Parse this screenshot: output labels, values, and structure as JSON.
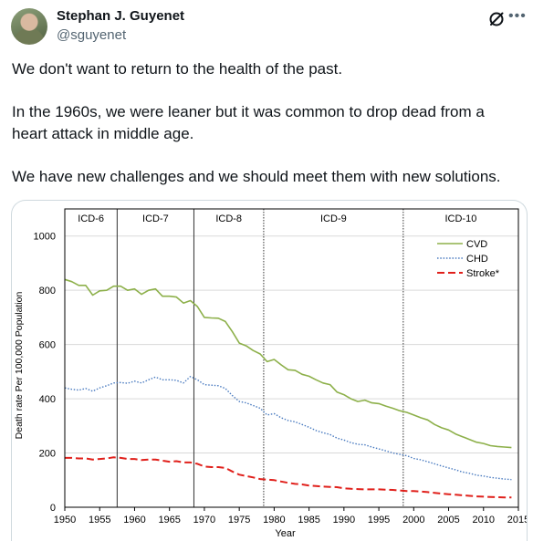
{
  "author": {
    "name": "Stephan J. Guyenet",
    "handle": "@sguyenet"
  },
  "icons": {
    "avatar": "profile-photo",
    "grok": "grok-slash-circle-icon",
    "more": "ellipsis-icon"
  },
  "tweet": {
    "paragraphs": [
      "We don't want to return to the health of the past.",
      "In the 1960s, we were leaner but it was common to drop dead from a heart attack in middle age.",
      "We have new challenges and we should meet them with new solutions."
    ]
  },
  "chart_data": {
    "type": "line",
    "xlabel": "Year",
    "ylabel": "Death rate Per 100,000 Population",
    "xlim": [
      1950,
      2015
    ],
    "ylim": [
      0,
      1100
    ],
    "x_ticks": [
      1950,
      1955,
      1960,
      1965,
      1970,
      1975,
      1980,
      1985,
      1990,
      1995,
      2000,
      2005,
      2010,
      2015
    ],
    "y_ticks": [
      0,
      200,
      400,
      600,
      800,
      1000
    ],
    "legend_position": "top-right",
    "icd_periods": [
      {
        "label": "ICD-6",
        "start": 1950,
        "end": 1957.5,
        "divider_style": "solid"
      },
      {
        "label": "ICD-7",
        "start": 1957.5,
        "end": 1968.5,
        "divider_style": "solid"
      },
      {
        "label": "ICD-8",
        "start": 1968.5,
        "end": 1978.5,
        "divider_style": "dotted"
      },
      {
        "label": "ICD-9",
        "start": 1978.5,
        "end": 1998.5,
        "divider_style": "dotted"
      },
      {
        "label": "ICD-10",
        "start": 1998.5,
        "end": 2015,
        "divider_style": "none"
      }
    ],
    "series": [
      {
        "name": "CVD",
        "color": "#8db04a",
        "style": "solid",
        "x": [
          1950,
          1951,
          1952,
          1953,
          1954,
          1955,
          1956,
          1957,
          1958,
          1959,
          1960,
          1961,
          1962,
          1963,
          1964,
          1965,
          1966,
          1967,
          1968,
          1969,
          1970,
          1971,
          1972,
          1973,
          1974,
          1975,
          1976,
          1977,
          1978,
          1979,
          1980,
          1981,
          1982,
          1983,
          1984,
          1985,
          1986,
          1987,
          1988,
          1989,
          1990,
          1991,
          1992,
          1993,
          1994,
          1995,
          1996,
          1997,
          1998,
          1999,
          2000,
          2001,
          2002,
          2003,
          2004,
          2005,
          2006,
          2007,
          2008,
          2009,
          2010,
          2011,
          2012,
          2013,
          2014
        ],
        "y": [
          840,
          832,
          818,
          818,
          782,
          798,
          800,
          815,
          815,
          800,
          805,
          785,
          800,
          805,
          778,
          778,
          775,
          753,
          762,
          740,
          700,
          698,
          697,
          685,
          648,
          605,
          595,
          578,
          565,
          537,
          545,
          525,
          507,
          505,
          490,
          483,
          470,
          458,
          452,
          425,
          415,
          400,
          390,
          395,
          385,
          382,
          373,
          365,
          356,
          350,
          340,
          330,
          322,
          305,
          293,
          285,
          270,
          260,
          250,
          240,
          235,
          227,
          224,
          222,
          220
        ]
      },
      {
        "name": "CHD",
        "color": "#4a7bc0",
        "style": "dotted",
        "x": [
          1950,
          1951,
          1952,
          1953,
          1954,
          1955,
          1956,
          1957,
          1958,
          1959,
          1960,
          1961,
          1962,
          1963,
          1964,
          1965,
          1966,
          1967,
          1968,
          1969,
          1970,
          1971,
          1972,
          1973,
          1974,
          1975,
          1976,
          1977,
          1978,
          1979,
          1980,
          1981,
          1982,
          1983,
          1984,
          1985,
          1986,
          1987,
          1988,
          1989,
          1990,
          1991,
          1992,
          1993,
          1994,
          1995,
          1996,
          1997,
          1998,
          1999,
          2000,
          2001,
          2002,
          2003,
          2004,
          2005,
          2006,
          2007,
          2008,
          2009,
          2010,
          2011,
          2012,
          2013,
          2014
        ],
        "y": [
          440,
          435,
          432,
          438,
          428,
          440,
          448,
          458,
          460,
          457,
          465,
          458,
          470,
          480,
          470,
          470,
          468,
          458,
          482,
          470,
          452,
          450,
          448,
          438,
          412,
          390,
          385,
          375,
          365,
          340,
          345,
          330,
          320,
          315,
          305,
          295,
          283,
          275,
          268,
          255,
          248,
          238,
          232,
          230,
          222,
          215,
          208,
          200,
          195,
          190,
          180,
          175,
          168,
          160,
          152,
          145,
          138,
          130,
          125,
          118,
          115,
          110,
          107,
          104,
          102
        ]
      },
      {
        "name": "Stroke*",
        "color": "#e0201b",
        "style": "dashed",
        "x": [
          1950,
          1951,
          1952,
          1953,
          1954,
          1955,
          1956,
          1957,
          1958,
          1959,
          1960,
          1961,
          1962,
          1963,
          1964,
          1965,
          1966,
          1967,
          1968,
          1969,
          1970,
          1971,
          1972,
          1973,
          1974,
          1975,
          1976,
          1977,
          1978,
          1979,
          1980,
          1981,
          1982,
          1983,
          1984,
          1985,
          1986,
          1987,
          1988,
          1989,
          1990,
          1991,
          1992,
          1993,
          1994,
          1995,
          1996,
          1997,
          1998,
          1999,
          2000,
          2001,
          2002,
          2003,
          2004,
          2005,
          2006,
          2007,
          2008,
          2009,
          2010,
          2011,
          2012,
          2013,
          2014
        ],
        "y": [
          182,
          182,
          180,
          180,
          176,
          178,
          180,
          184,
          182,
          178,
          178,
          174,
          176,
          176,
          172,
          168,
          170,
          165,
          165,
          160,
          150,
          148,
          148,
          145,
          132,
          120,
          115,
          110,
          104,
          102,
          100,
          95,
          90,
          86,
          84,
          80,
          78,
          76,
          75,
          74,
          70,
          68,
          67,
          66,
          66,
          66,
          65,
          64,
          62,
          60,
          60,
          58,
          56,
          53,
          50,
          48,
          46,
          44,
          42,
          40,
          39,
          38,
          37,
          36,
          36
        ]
      }
    ]
  }
}
